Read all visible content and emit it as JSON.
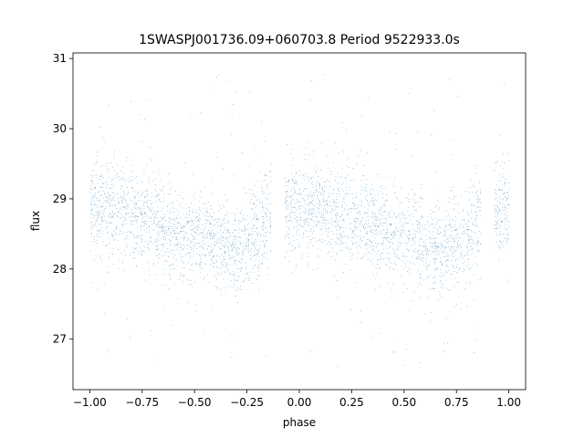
{
  "chart_data": {
    "type": "scatter",
    "title": "1SWASPJ001736.09+060703.8 Period 9522933.0s",
    "xlabel": "phase",
    "ylabel": "flux",
    "xlim": [
      -1.08,
      1.08
    ],
    "ylim": [
      26.28,
      31.08
    ],
    "xticks": [
      -1.0,
      -0.75,
      -0.5,
      -0.25,
      0.0,
      0.25,
      0.5,
      0.75,
      1.0
    ],
    "xtick_labels": [
      "−1.00",
      "−0.75",
      "−0.50",
      "−0.25",
      "0.00",
      "0.25",
      "0.50",
      "0.75",
      "1.00"
    ],
    "yticks": [
      27,
      28,
      29,
      30,
      31
    ],
    "ytick_labels": [
      "27",
      "28",
      "29",
      "30",
      "31"
    ],
    "grid": false,
    "legend": "none",
    "marker_color": "#1f77b4",
    "series": [
      {
        "description": "phase-folded light curve (approximate binned trend; thousands of small points)",
        "trend_x": [
          -1.0,
          -0.95,
          -0.9,
          -0.85,
          -0.8,
          -0.75,
          -0.7,
          -0.65,
          -0.6,
          -0.55,
          -0.5,
          -0.45,
          -0.4,
          -0.35,
          -0.3,
          -0.25,
          -0.2,
          -0.15,
          -0.1,
          -0.05,
          0.0,
          0.05,
          0.1,
          0.15,
          0.2,
          0.25,
          0.3,
          0.35,
          0.4,
          0.45,
          0.5,
          0.55,
          0.6,
          0.65,
          0.7,
          0.75,
          0.8,
          0.85,
          0.9,
          0.95,
          1.0
        ],
        "trend_y": [
          28.85,
          28.9,
          28.88,
          28.8,
          28.75,
          28.72,
          28.7,
          28.62,
          28.55,
          28.45,
          28.45,
          28.42,
          28.35,
          28.3,
          28.28,
          28.35,
          28.5,
          28.65,
          28.8,
          28.88,
          28.85,
          28.9,
          28.88,
          28.8,
          28.75,
          28.72,
          28.7,
          28.62,
          28.55,
          28.45,
          28.45,
          28.42,
          28.35,
          28.3,
          28.28,
          28.35,
          28.5,
          28.65,
          28.8,
          28.88,
          28.85
        ],
        "scatter_sd": 0.33
      }
    ]
  }
}
